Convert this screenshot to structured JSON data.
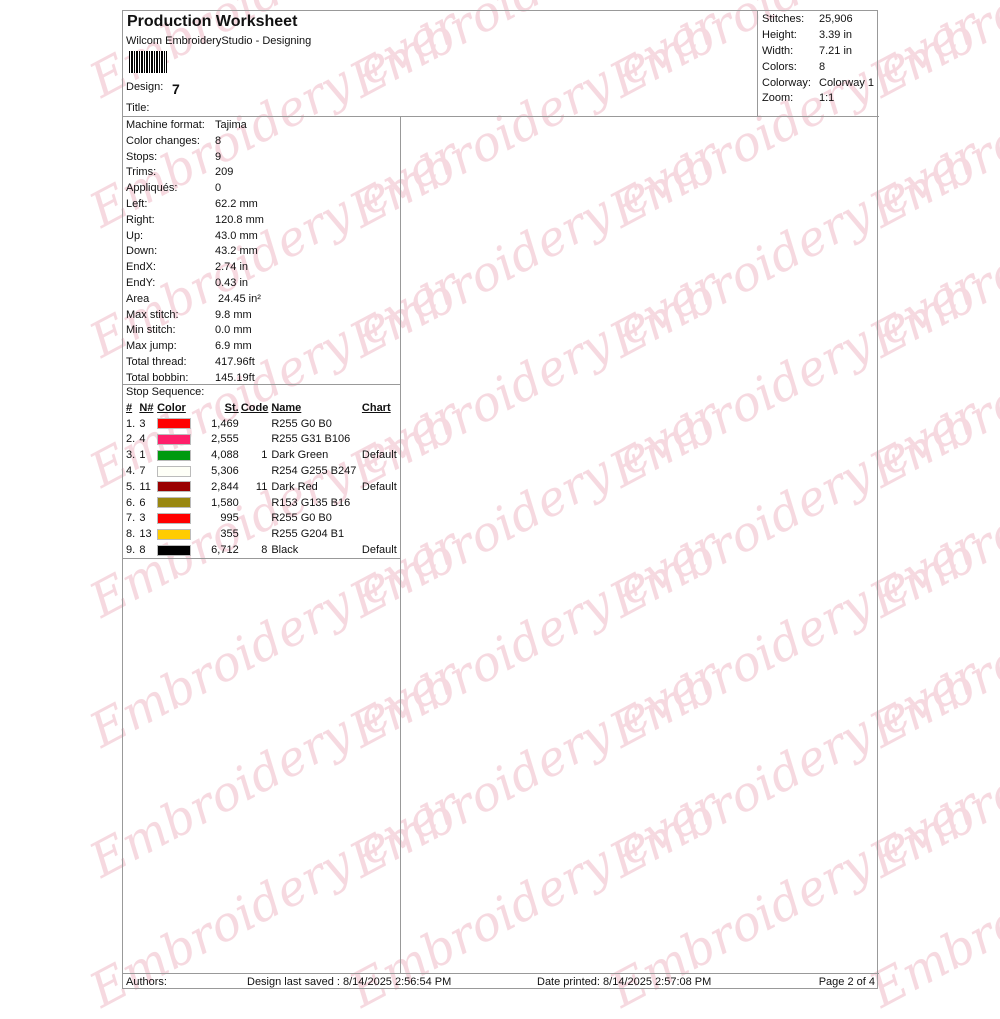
{
  "watermark": "Embroidery ever",
  "header": {
    "title": "Production Worksheet",
    "subtitle": "Wilcom EmbroideryStudio - Designing",
    "design_label": "Design:",
    "design_value": "7",
    "title_label": "Title:"
  },
  "stats": [
    {
      "k": "Stitches:",
      "v": "25,906"
    },
    {
      "k": "Height:",
      "v": "3.39 in"
    },
    {
      "k": "Width:",
      "v": "7.21 in"
    },
    {
      "k": "Colors:",
      "v": "8"
    },
    {
      "k": "Colorway:",
      "v": "Colorway 1"
    },
    {
      "k": "Zoom:",
      "v": "1:1"
    }
  ],
  "specs": [
    {
      "k": "Machine format:",
      "v": "Tajima"
    },
    {
      "k": "Color changes:",
      "v": "8"
    },
    {
      "k": "Stops:",
      "v": "9"
    },
    {
      "k": "Trims:",
      "v": "209"
    },
    {
      "k": "Appliqués:",
      "v": "0"
    },
    {
      "k": "Left:",
      "v": "62.2 mm"
    },
    {
      "k": "Right:",
      "v": "120.8 mm"
    },
    {
      "k": "Up:",
      "v": "43.0 mm"
    },
    {
      "k": "Down:",
      "v": "43.2 mm"
    },
    {
      "k": "EndX:",
      "v": "2.74 in"
    },
    {
      "k": "EndY:",
      "v": "0.43 in"
    },
    {
      "k": "Area",
      "v": " 24.45 in²"
    },
    {
      "k": "Max stitch:",
      "v": "9.8 mm"
    },
    {
      "k": "Min stitch:",
      "v": "0.0 mm"
    },
    {
      "k": "Max jump:",
      "v": "6.9 mm"
    },
    {
      "k": "Total thread:",
      "v": "417.96ft"
    },
    {
      "k": "Total bobbin:",
      "v": "145.19ft"
    }
  ],
  "sequence": {
    "caption": "Stop Sequence:",
    "headers": [
      "#",
      "N#",
      "Color",
      "St.",
      "Code",
      "Name",
      "Chart"
    ],
    "rows": [
      {
        "i": "1.",
        "n": "3",
        "color": "#ff0000",
        "st": "1,469",
        "code": "",
        "name": "R255 G0 B0",
        "chart": ""
      },
      {
        "i": "2.",
        "n": "4",
        "color": "#ff1f6a",
        "st": "2,555",
        "code": "",
        "name": "R255 G31 B106",
        "chart": ""
      },
      {
        "i": "3.",
        "n": "1",
        "color": "#009a0f",
        "st": "4,088",
        "code": "1",
        "name": "Dark Green",
        "chart": "Default"
      },
      {
        "i": "4.",
        "n": "7",
        "color": "#fefff7",
        "st": "5,306",
        "code": "",
        "name": "R254 G255 B247",
        "chart": ""
      },
      {
        "i": "5.",
        "n": "11",
        "color": "#9a0000",
        "st": "2,844",
        "code": "11",
        "name": "Dark Red",
        "chart": "Default"
      },
      {
        "i": "6.",
        "n": "6",
        "color": "#998710",
        "st": "1,580",
        "code": "",
        "name": "R153 G135 B16",
        "chart": ""
      },
      {
        "i": "7.",
        "n": "3",
        "color": "#ff0000",
        "st": "995",
        "code": "",
        "name": "R255 G0 B0",
        "chart": ""
      },
      {
        "i": "8.",
        "n": "13",
        "color": "#ffcc01",
        "st": "355",
        "code": "",
        "name": "R255 G204 B1",
        "chart": ""
      },
      {
        "i": "9.",
        "n": "8",
        "color": "#000000",
        "st": "6,712",
        "code": "8",
        "name": "Black",
        "chart": "Default"
      }
    ]
  },
  "footer": {
    "authors": "Authors:",
    "saved": "Design last saved : 8/14/2025 2:56:54 PM",
    "printed": "Date printed: 8/14/2025 2:57:08 PM",
    "page": "Page 2 of 4"
  }
}
